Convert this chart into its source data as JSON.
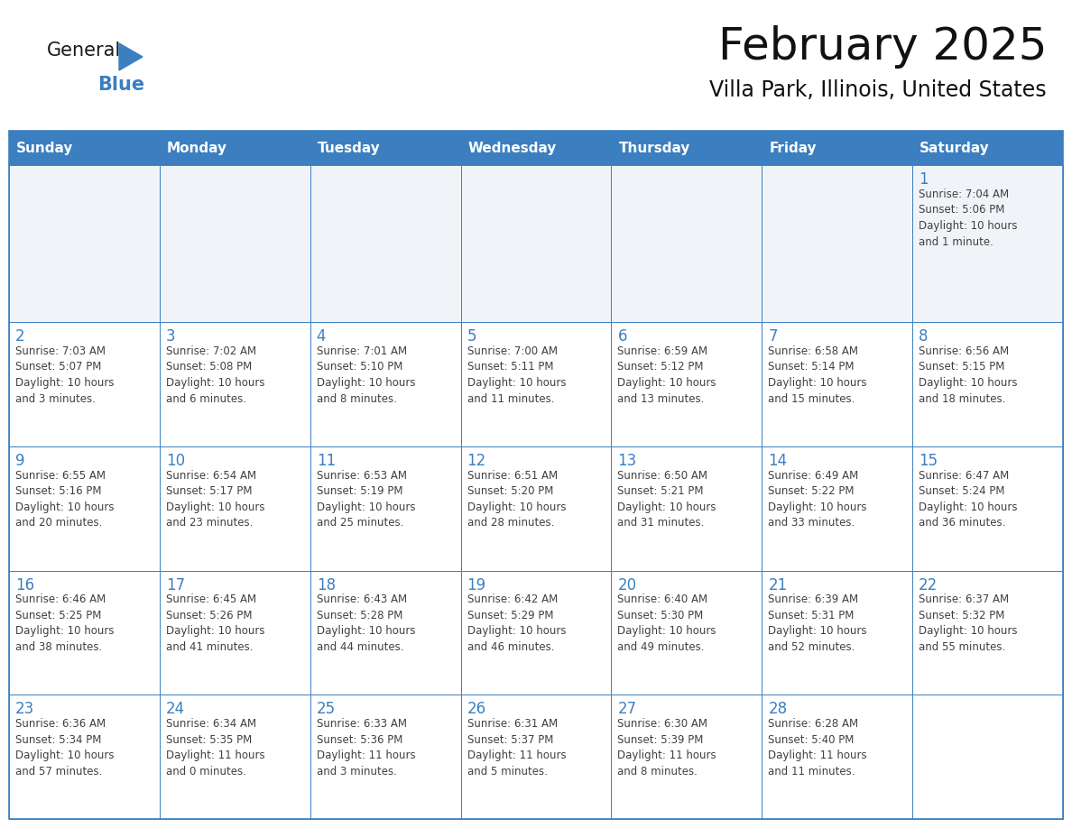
{
  "title": "February 2025",
  "subtitle": "Villa Park, Illinois, United States",
  "header_color": "#3c7fc0",
  "header_text_color": "#ffffff",
  "cell_bg_color": "#ffffff",
  "cell_bg_alt": "#f0f4f8",
  "cell_border_color": "#3c7fc0",
  "day_number_color": "#3c7fc0",
  "cell_text_color": "#404040",
  "background_color": "#ffffff",
  "days_of_week": [
    "Sunday",
    "Monday",
    "Tuesday",
    "Wednesday",
    "Thursday",
    "Friday",
    "Saturday"
  ],
  "weeks": [
    [
      {
        "day": null,
        "info": null
      },
      {
        "day": null,
        "info": null
      },
      {
        "day": null,
        "info": null
      },
      {
        "day": null,
        "info": null
      },
      {
        "day": null,
        "info": null
      },
      {
        "day": null,
        "info": null
      },
      {
        "day": 1,
        "info": "Sunrise: 7:04 AM\nSunset: 5:06 PM\nDaylight: 10 hours\nand 1 minute."
      }
    ],
    [
      {
        "day": 2,
        "info": "Sunrise: 7:03 AM\nSunset: 5:07 PM\nDaylight: 10 hours\nand 3 minutes."
      },
      {
        "day": 3,
        "info": "Sunrise: 7:02 AM\nSunset: 5:08 PM\nDaylight: 10 hours\nand 6 minutes."
      },
      {
        "day": 4,
        "info": "Sunrise: 7:01 AM\nSunset: 5:10 PM\nDaylight: 10 hours\nand 8 minutes."
      },
      {
        "day": 5,
        "info": "Sunrise: 7:00 AM\nSunset: 5:11 PM\nDaylight: 10 hours\nand 11 minutes."
      },
      {
        "day": 6,
        "info": "Sunrise: 6:59 AM\nSunset: 5:12 PM\nDaylight: 10 hours\nand 13 minutes."
      },
      {
        "day": 7,
        "info": "Sunrise: 6:58 AM\nSunset: 5:14 PM\nDaylight: 10 hours\nand 15 minutes."
      },
      {
        "day": 8,
        "info": "Sunrise: 6:56 AM\nSunset: 5:15 PM\nDaylight: 10 hours\nand 18 minutes."
      }
    ],
    [
      {
        "day": 9,
        "info": "Sunrise: 6:55 AM\nSunset: 5:16 PM\nDaylight: 10 hours\nand 20 minutes."
      },
      {
        "day": 10,
        "info": "Sunrise: 6:54 AM\nSunset: 5:17 PM\nDaylight: 10 hours\nand 23 minutes."
      },
      {
        "day": 11,
        "info": "Sunrise: 6:53 AM\nSunset: 5:19 PM\nDaylight: 10 hours\nand 25 minutes."
      },
      {
        "day": 12,
        "info": "Sunrise: 6:51 AM\nSunset: 5:20 PM\nDaylight: 10 hours\nand 28 minutes."
      },
      {
        "day": 13,
        "info": "Sunrise: 6:50 AM\nSunset: 5:21 PM\nDaylight: 10 hours\nand 31 minutes."
      },
      {
        "day": 14,
        "info": "Sunrise: 6:49 AM\nSunset: 5:22 PM\nDaylight: 10 hours\nand 33 minutes."
      },
      {
        "day": 15,
        "info": "Sunrise: 6:47 AM\nSunset: 5:24 PM\nDaylight: 10 hours\nand 36 minutes."
      }
    ],
    [
      {
        "day": 16,
        "info": "Sunrise: 6:46 AM\nSunset: 5:25 PM\nDaylight: 10 hours\nand 38 minutes."
      },
      {
        "day": 17,
        "info": "Sunrise: 6:45 AM\nSunset: 5:26 PM\nDaylight: 10 hours\nand 41 minutes."
      },
      {
        "day": 18,
        "info": "Sunrise: 6:43 AM\nSunset: 5:28 PM\nDaylight: 10 hours\nand 44 minutes."
      },
      {
        "day": 19,
        "info": "Sunrise: 6:42 AM\nSunset: 5:29 PM\nDaylight: 10 hours\nand 46 minutes."
      },
      {
        "day": 20,
        "info": "Sunrise: 6:40 AM\nSunset: 5:30 PM\nDaylight: 10 hours\nand 49 minutes."
      },
      {
        "day": 21,
        "info": "Sunrise: 6:39 AM\nSunset: 5:31 PM\nDaylight: 10 hours\nand 52 minutes."
      },
      {
        "day": 22,
        "info": "Sunrise: 6:37 AM\nSunset: 5:32 PM\nDaylight: 10 hours\nand 55 minutes."
      }
    ],
    [
      {
        "day": 23,
        "info": "Sunrise: 6:36 AM\nSunset: 5:34 PM\nDaylight: 10 hours\nand 57 minutes."
      },
      {
        "day": 24,
        "info": "Sunrise: 6:34 AM\nSunset: 5:35 PM\nDaylight: 11 hours\nand 0 minutes."
      },
      {
        "day": 25,
        "info": "Sunrise: 6:33 AM\nSunset: 5:36 PM\nDaylight: 11 hours\nand 3 minutes."
      },
      {
        "day": 26,
        "info": "Sunrise: 6:31 AM\nSunset: 5:37 PM\nDaylight: 11 hours\nand 5 minutes."
      },
      {
        "day": 27,
        "info": "Sunrise: 6:30 AM\nSunset: 5:39 PM\nDaylight: 11 hours\nand 8 minutes."
      },
      {
        "day": 28,
        "info": "Sunrise: 6:28 AM\nSunset: 5:40 PM\nDaylight: 11 hours\nand 11 minutes."
      },
      {
        "day": null,
        "info": null
      }
    ]
  ],
  "logo_text_general": "General",
  "logo_text_blue": "Blue",
  "logo_color_general": "#1a1a1a",
  "logo_color_blue": "#3c7fc0",
  "logo_triangle_color": "#3c7fc0",
  "title_fontsize": 36,
  "subtitle_fontsize": 17,
  "header_fontsize": 11,
  "day_num_fontsize": 12,
  "cell_text_fontsize": 8.5,
  "logo_fontsize_general": 15,
  "logo_fontsize_blue": 15
}
